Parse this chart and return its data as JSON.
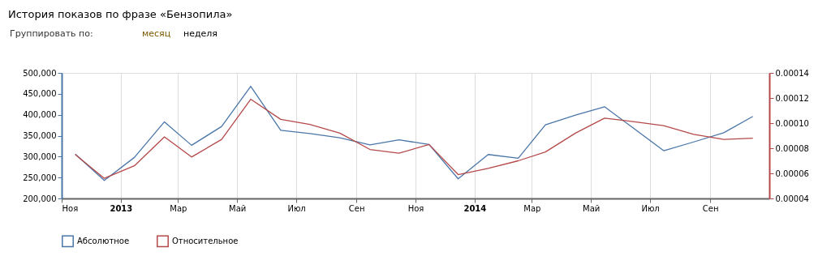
{
  "chart_data": {
    "type": "line",
    "title": "История показов по фразе «Бензопила»",
    "annotations": [
      "Группировать по:",
      "месяц",
      "неделя"
    ],
    "x": [
      "2012-11-15",
      "2012-12-15",
      "2013-01-15",
      "2013-02-15",
      "2013-03-15",
      "2013-04-15",
      "2013-05-15",
      "2013-06-15",
      "2013-07-15",
      "2013-08-15",
      "2013-09-15",
      "2013-10-15",
      "2013-11-15",
      "2013-12-15",
      "2014-01-15",
      "2014-02-15",
      "2014-03-15",
      "2014-04-15",
      "2014-05-15",
      "2014-06-15",
      "2014-07-15",
      "2014-08-15",
      "2014-09-15",
      "2014-10-15"
    ],
    "series": [
      {
        "name": "Абсолютное",
        "color": "#4a76a8",
        "values": [
          306000,
          243000,
          298000,
          383000,
          327000,
          372000,
          468000,
          363000,
          355000,
          345000,
          328000,
          340000,
          329000,
          247000,
          305000,
          296000,
          376000,
          399000,
          419000,
          366000,
          314000,
          335000,
          357000,
          396000
        ]
      },
      {
        "name": "Относительное",
        "color": "#b5494a",
        "axis": "y2",
        "values": [
          7.5e-05,
          5.6e-05,
          6.6e-05,
          8.9e-05,
          7.3e-05,
          8.7e-05,
          0.000119,
          0.000103,
          9.9e-05,
          9.2e-05,
          7.9e-05,
          7.6e-05,
          8.3e-05,
          5.9e-05,
          6.4e-05,
          7e-05,
          7.7e-05,
          9.2e-05,
          0.000104,
          0.000101,
          9.8e-05,
          9.1e-05,
          8.7e-05,
          8.8e-05
        ]
      }
    ],
    "xlim": [
      "2012-11-01",
      "2014-11-01"
    ],
    "xticks": [
      {
        "value": "2012-11-01",
        "label": "Ноя"
      },
      {
        "value": "2013-01-01",
        "label": "2013"
      },
      {
        "value": "2013-03-01",
        "label": "Мар"
      },
      {
        "value": "2013-05-01",
        "label": "Май"
      },
      {
        "value": "2013-07-01",
        "label": "Июл"
      },
      {
        "value": "2013-09-01",
        "label": "Сен"
      },
      {
        "value": "2013-11-01",
        "label": "Ноя"
      },
      {
        "value": "2014-01-01",
        "label": "2014"
      },
      {
        "value": "2014-03-01",
        "label": "Мар"
      },
      {
        "value": "2014-05-01",
        "label": "Май"
      },
      {
        "value": "2014-07-01",
        "label": "Июл"
      },
      {
        "value": "2014-09-01",
        "label": "Сен"
      }
    ],
    "ylim": [
      200000,
      500000
    ],
    "yticks": [
      {
        "value": 200000,
        "label": "200,000"
      },
      {
        "value": 250000,
        "label": "250,000"
      },
      {
        "value": 300000,
        "label": "300,000"
      },
      {
        "value": 350000,
        "label": "350,000"
      },
      {
        "value": 400000,
        "label": "400,000"
      },
      {
        "value": 450000,
        "label": "450,000"
      },
      {
        "value": 500000,
        "label": "500,000"
      }
    ],
    "y2lim": [
      4e-05,
      0.00014
    ],
    "y2ticks": [
      {
        "value": 4e-05,
        "label": "0.00004"
      },
      {
        "value": 6e-05,
        "label": "0.00006"
      },
      {
        "value": 8e-05,
        "label": "0.00008"
      },
      {
        "value": 0.0001,
        "label": "0.00010"
      },
      {
        "value": 0.00012,
        "label": "0.00012"
      },
      {
        "value": 0.00014,
        "label": "0.00014"
      }
    ],
    "grid": "x",
    "legend": "bottom left",
    "marker": "none",
    "line_style": "solid"
  }
}
